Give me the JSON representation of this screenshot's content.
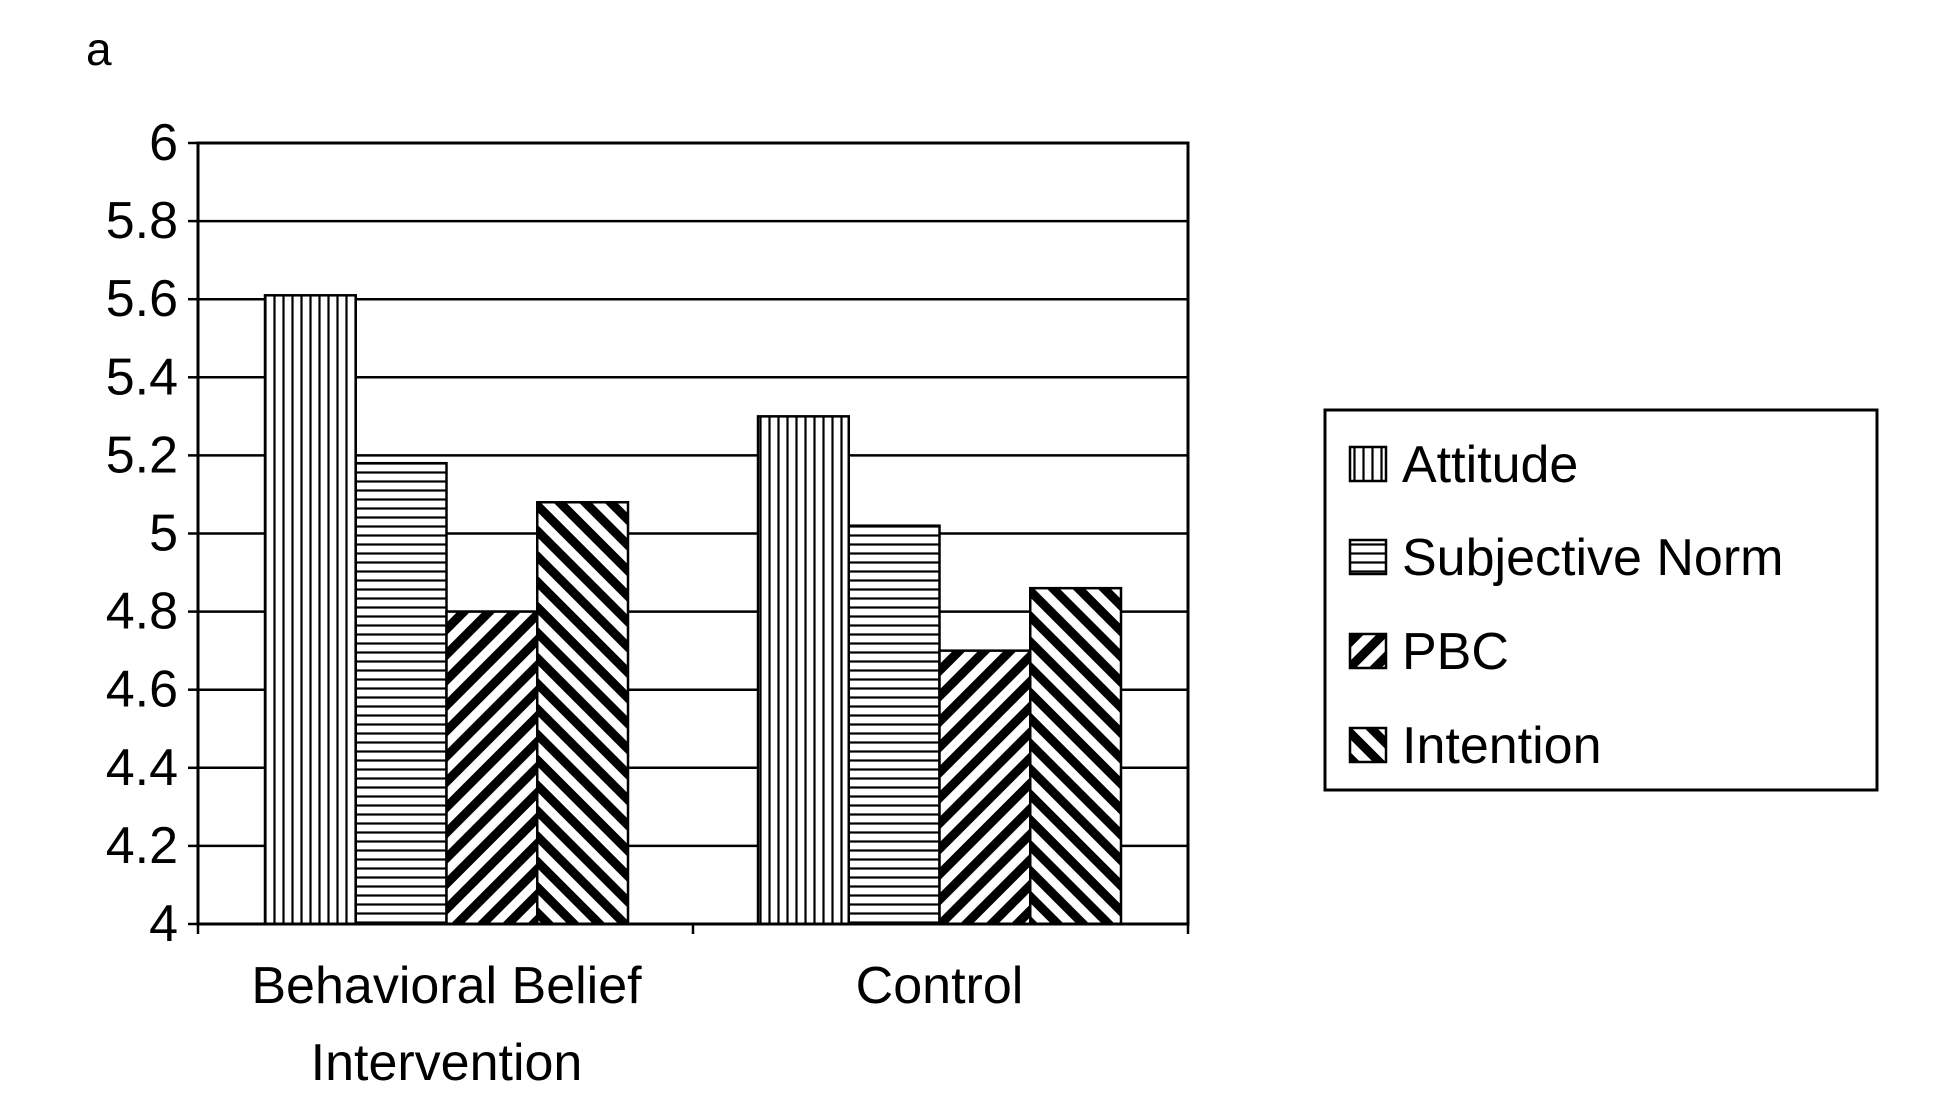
{
  "panel_label": "a",
  "chart_data": {
    "type": "bar",
    "categories": [
      "Behavioral Belief Intervention",
      "Control"
    ],
    "category_label_lines": [
      [
        "Behavioral Belief",
        "Intervention"
      ],
      [
        "Control"
      ]
    ],
    "series": [
      {
        "name": "Attitude",
        "values": [
          5.61,
          5.3
        ],
        "pattern": "vertical"
      },
      {
        "name": "Subjective Norm",
        "values": [
          5.18,
          5.02
        ],
        "pattern": "horizontal"
      },
      {
        "name": "PBC",
        "values": [
          4.8,
          4.7
        ],
        "pattern": "diagonal-up"
      },
      {
        "name": "Intention",
        "values": [
          5.08,
          4.86
        ],
        "pattern": "diagonal-down"
      }
    ],
    "ylim": [
      4,
      6
    ],
    "yticks": [
      "4",
      "4.2",
      "4.4",
      "4.6",
      "4.8",
      "5",
      "5.2",
      "5.4",
      "5.6",
      "5.8",
      "6"
    ],
    "title": "",
    "xlabel": "",
    "ylabel": "",
    "grid": true,
    "legend_position": "right",
    "colors": {
      "stroke": "#000000",
      "fill": "#ffffff"
    }
  }
}
